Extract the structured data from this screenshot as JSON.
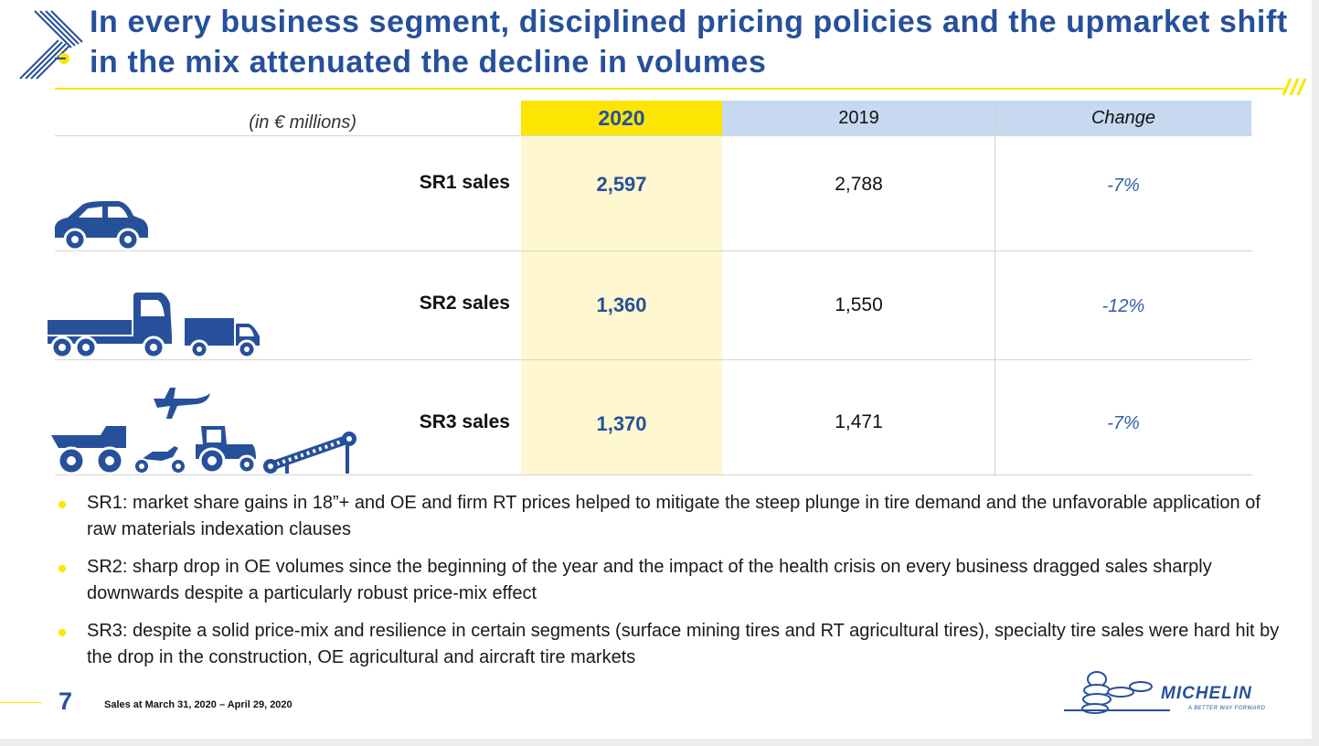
{
  "title": "In every business segment, disciplined pricing policies and the upmarket shift in the mix attenuated the decline in volumes",
  "table": {
    "unit_label": "(in € millions)",
    "columns": [
      "2020",
      "2019",
      "Change"
    ],
    "rows": [
      {
        "label": "SR1 sales",
        "v2020": "2,597",
        "v2019": "2,788",
        "change": "-7%"
      },
      {
        "label": "SR2 sales",
        "v2020": "1,360",
        "v2019": "1,550",
        "change": "-12%"
      },
      {
        "label": "SR3 sales",
        "v2020": "1,370",
        "v2019": "1,471",
        "change": "-7%"
      }
    ]
  },
  "bullets": [
    "SR1: market share gains in 18”+ and OE and firm RT prices helped to mitigate the steep plunge in tire demand and the unfavorable application of raw materials indexation clauses",
    "SR2: sharp drop in OE volumes since the beginning of the year and the impact of the health crisis on every business dragged sales sharply downwards despite a particularly robust price-mix effect",
    "SR3: despite a solid price-mix and resilience in certain segments (surface mining tires and RT agricultural tires), specialty tire sales were hard hit by the drop in the construction, OE agricultural and aircraft tire markets"
  ],
  "footer": {
    "page_number": "7",
    "note": "Sales at March 31, 2020 – April 29, 2020"
  },
  "brand": {
    "name": "MICHELIN",
    "tagline": "A BETTER WAY FORWARD"
  },
  "colors": {
    "accent_blue": "#27509b",
    "accent_yellow": "#fce500",
    "header_blue": "#c6d9f1",
    "highlight_column": "#fef7d0"
  },
  "icons": {
    "sr1": [
      "car-icon"
    ],
    "sr2": [
      "truck-icon",
      "van-icon"
    ],
    "sr3": [
      "airplane-icon",
      "dump-truck-icon",
      "motorcycle-icon",
      "tractor-icon",
      "conveyor-icon"
    ]
  }
}
